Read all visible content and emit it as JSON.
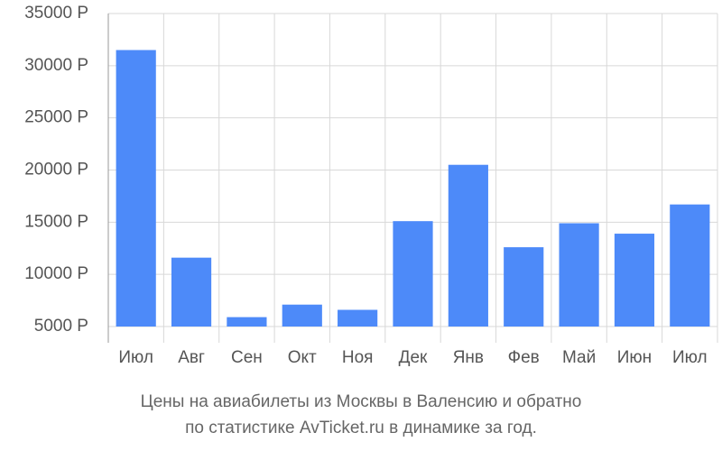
{
  "chart_data": {
    "type": "bar",
    "title": [
      "Цены на авиабилеты из Москвы в Валенсию и обратно",
      "по статистике AvTicket.ru в динамике за год."
    ],
    "categories": [
      "Июл",
      "Авг",
      "Сен",
      "Окт",
      "Ноя",
      "Дек",
      "Янв",
      "Фев",
      "Май",
      "Июн",
      "Июл"
    ],
    "values": [
      31500,
      11600,
      5900,
      7100,
      6600,
      15100,
      20500,
      12600,
      14900,
      13900,
      16700
    ],
    "color": "#4d8af9",
    "ylim": [
      5000,
      35000
    ],
    "yticks": [
      {
        "value": 5000,
        "label": "5000 Р"
      },
      {
        "value": 10000,
        "label": "10000 Р"
      },
      {
        "value": 15000,
        "label": "15000 Р"
      },
      {
        "value": 20000,
        "label": "20000 Р"
      },
      {
        "value": 25000,
        "label": "25000 Р"
      },
      {
        "value": 30000,
        "label": "30000 Р"
      },
      {
        "value": 35000,
        "label": "35000 Р"
      }
    ],
    "grid": true
  }
}
